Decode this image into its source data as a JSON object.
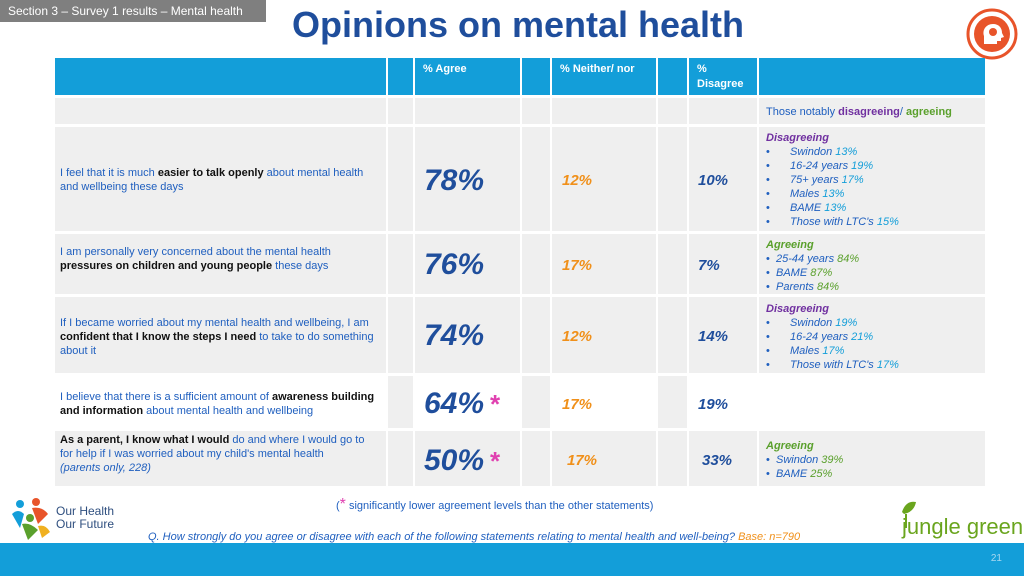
{
  "section_label": "Section 3 – Survey 1 results – Mental health",
  "title": "Opinions on mental health",
  "columns": {
    "agree": "% Agree",
    "neither": "% Neither/ nor",
    "disagree_line1": "%",
    "disagree_line2": "Disagree"
  },
  "notably": {
    "prefix": "Those notably ",
    "disagreeing": "disagreeing",
    "slash": "/ ",
    "agreeing": "agreeing"
  },
  "rows": [
    {
      "stmt_a": "I feel that it is much ",
      "stmt_b": "easier to talk openly",
      "stmt_c": " about mental health and wellbeing these days",
      "agree": "78%",
      "neither": "12%",
      "disagree": "10%",
      "notes_heading": "Disagreeing",
      "notes": [
        {
          "label": "Swindon ",
          "value": "13%"
        },
        {
          "label": "16-24 years ",
          "value": "19%"
        },
        {
          "label": "75+ years ",
          "value": "17%"
        },
        {
          "label": "Males ",
          "value": "13%"
        },
        {
          "label": "BAME ",
          "value": "13%"
        },
        {
          "label": "Those with LTC's ",
          "value": "15%"
        }
      ]
    },
    {
      "stmt_a": "I am personally very concerned about the mental health ",
      "stmt_b": "pressures on children and young people",
      "stmt_c": " these days",
      "agree": "76%",
      "neither": "17%",
      "disagree": "7%",
      "notes_heading": "Agreeing",
      "notes": [
        {
          "label": "25-44 years ",
          "value": "84%"
        },
        {
          "label": "BAME  ",
          "value": "87%"
        },
        {
          "label": "Parents  ",
          "value": "84%"
        }
      ]
    },
    {
      "stmt_a": "If I became worried about my mental health and wellbeing, I am ",
      "stmt_b": "confident that I know the steps I need",
      "stmt_c": " to take to do something about it",
      "agree": "74%",
      "neither": "12%",
      "disagree": "14%",
      "notes_heading": "Disagreeing",
      "notes": [
        {
          "label": "Swindon  ",
          "value": "19%"
        },
        {
          "label": "16-24 years ",
          "value": "21%"
        },
        {
          "label": "Males ",
          "value": "17%"
        },
        {
          "label": "Those with LTC's ",
          "value": "17%"
        }
      ]
    },
    {
      "stmt_a": "I believe that there is a sufficient amount of ",
      "stmt_b": "awareness building and information",
      "stmt_c": " about mental health and wellbeing",
      "agree": "64%",
      "star": "*",
      "neither": "17%",
      "disagree": "19%"
    },
    {
      "stmt_b": "As a parent, I know what I would",
      "stmt_c": " do and where I would go to for help if I was worried about my child's mental health",
      "note": "(parents only, 228)",
      "agree": "50%",
      "star": "*",
      "neither": "17%",
      "disagree": "33%",
      "notes_heading": "Agreeing",
      "notes": [
        {
          "label": "Swindon ",
          "value": "39%"
        },
        {
          "label": "BAME ",
          "value": "25%"
        }
      ]
    }
  ],
  "footnote": {
    "open": "(",
    "star": "*",
    "text": " significantly lower agreement levels than the other statements)"
  },
  "question": {
    "text": "Q. How strongly do you agree or disagree with each of the following statements relating to mental health and well-being? ",
    "base": "Base: n=790"
  },
  "logo_left": {
    "line1": "Our Health",
    "line2": "Our Future"
  },
  "logo_right": {
    "text": "jungle green"
  },
  "page_number": "21",
  "colors": {
    "header_blue": "#139ed9",
    "title_blue": "#1f4e9c",
    "neither_orange": "#f0901a",
    "disagree_purple": "#7030a0",
    "agree_green": "#5aa02c",
    "star_pink": "#e040b0"
  }
}
